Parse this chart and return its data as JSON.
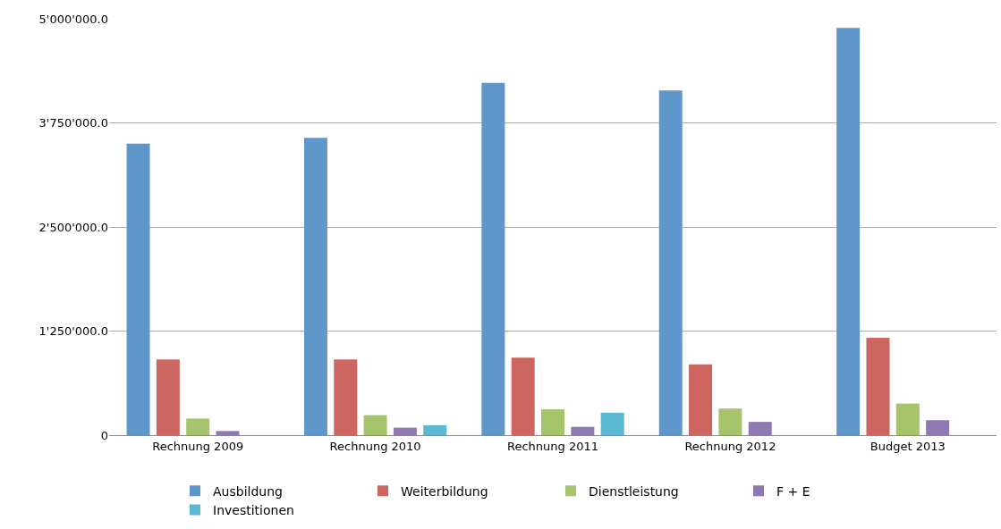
{
  "chart_data": {
    "type": "bar",
    "categories": [
      "Rechnung 2009",
      "Rechnung 2010",
      "Rechnung 2011",
      "Rechnung 2012",
      "Budget 2013"
    ],
    "series": [
      {
        "name": "Ausbildung",
        "color": "#5f97cb",
        "values": [
          3500000,
          3570000,
          4230000,
          4140000,
          4890000
        ]
      },
      {
        "name": "Weiterbildung",
        "color": "#cd6660",
        "values": [
          910000,
          910000,
          930000,
          850000,
          1170000
        ]
      },
      {
        "name": "Dienstleistung",
        "color": "#a6c46c",
        "values": [
          200000,
          240000,
          310000,
          320000,
          380000
        ]
      },
      {
        "name": "F + E",
        "color": "#8f79b3",
        "values": [
          50000,
          90000,
          100000,
          160000,
          180000
        ]
      },
      {
        "name": "Investitionen",
        "color": "#5ab8d0",
        "values": [
          null,
          120000,
          270000,
          null,
          null
        ]
      }
    ],
    "ylim": [
      0,
      5000000
    ],
    "yticks": [
      {
        "value": 0,
        "label": "0"
      },
      {
        "value": 1250000,
        "label": "1'250'000.0"
      },
      {
        "value": 2500000,
        "label": "2'500'000.0"
      },
      {
        "value": 3750000,
        "label": "3'750'000.0"
      },
      {
        "value": 5000000,
        "label": "5'000'000.0"
      }
    ],
    "grid": "y",
    "legend": "bottom"
  }
}
